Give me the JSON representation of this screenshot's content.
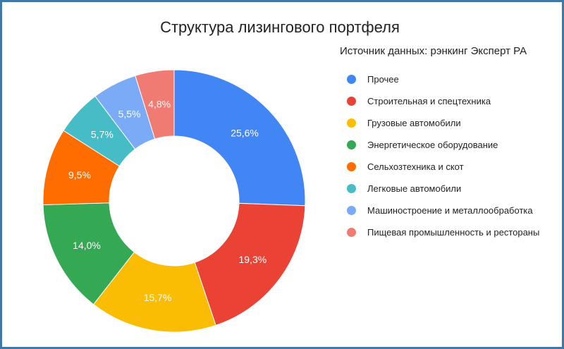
{
  "chart_data": {
    "type": "pie",
    "donut": true,
    "title": "Структура лизингового портфеля",
    "subtitle": "Источник данных: рэнкинг Эксперт РА",
    "legend_position": "right",
    "slices": [
      {
        "label": "Прочее",
        "value": 25.6,
        "display": "25,6%",
        "color": "#4285f4"
      },
      {
        "label": "Строительная и спецтехника",
        "value": 19.3,
        "display": "19,3%",
        "color": "#ea4335"
      },
      {
        "label": "Грузовые автомобили",
        "value": 15.7,
        "display": "15,7%",
        "color": "#fbbc04"
      },
      {
        "label": "Энергетическое оборудование",
        "value": 14.0,
        "display": "14,0%",
        "color": "#34a853"
      },
      {
        "label": "Сельхозтехника и скот",
        "value": 9.5,
        "display": "9,5%",
        "color": "#ff6d01"
      },
      {
        "label": "Легковые автомобили",
        "value": 5.7,
        "display": "5,7%",
        "color": "#46bdc6"
      },
      {
        "label": "Машиностроение и металлообработка",
        "value": 5.5,
        "display": "5,5%",
        "color": "#7baaf7"
      },
      {
        "label": "Пищевая промышленность и рестораны",
        "value": 4.8,
        "display": "4,8%",
        "color": "#f07b72"
      }
    ]
  }
}
